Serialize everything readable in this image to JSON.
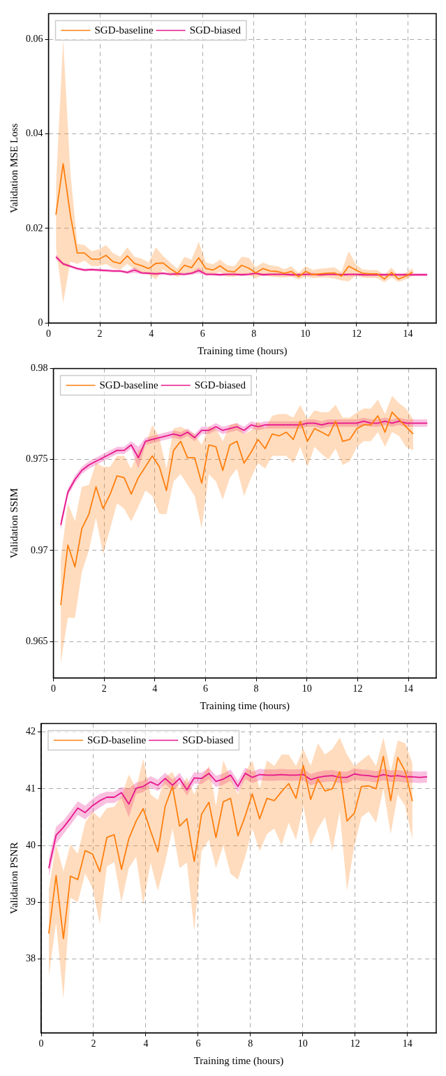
{
  "chart_data": [
    {
      "type": "line",
      "xlabel": "Training time (hours)",
      "ylabel": "Validation MSE Loss",
      "xlim": [
        0,
        15.1
      ],
      "xticks": [
        0,
        2,
        4,
        6,
        8,
        10,
        12,
        14
      ],
      "ylim": [
        0,
        0.0655
      ],
      "yticks": [
        0,
        0.02,
        0.04,
        0.06
      ],
      "grid": true,
      "legend": "top left",
      "series": [
        {
          "name": "SGD-baseline",
          "color": "#ff7f0e",
          "x": [
            0.29,
            0.57,
            0.85,
            1.12,
            1.4,
            1.68,
            1.96,
            2.24,
            2.51,
            2.79,
            3.07,
            3.35,
            3.63,
            3.9,
            4.18,
            4.46,
            4.74,
            5.02,
            5.29,
            5.57,
            5.85,
            6.13,
            6.41,
            6.68,
            6.96,
            7.24,
            7.52,
            7.8,
            8.07,
            8.35,
            8.63,
            8.91,
            9.19,
            9.46,
            9.74,
            10.02,
            10.3,
            10.58,
            10.85,
            11.13,
            11.41,
            11.69,
            11.97,
            12.24,
            12.52,
            12.8,
            13.08,
            13.36,
            13.63,
            13.91,
            14.19
          ],
          "values": [
            0.0229,
            0.0337,
            0.0229,
            0.0148,
            0.0148,
            0.0135,
            0.0135,
            0.0143,
            0.013,
            0.0126,
            0.0142,
            0.0126,
            0.0121,
            0.0115,
            0.0126,
            0.0127,
            0.0115,
            0.0105,
            0.0122,
            0.0117,
            0.0138,
            0.0115,
            0.0112,
            0.0121,
            0.011,
            0.0108,
            0.0122,
            0.0116,
            0.0106,
            0.0115,
            0.011,
            0.0109,
            0.0105,
            0.0109,
            0.0098,
            0.0109,
            0.0102,
            0.0104,
            0.0105,
            0.0106,
            0.0099,
            0.012,
            0.0112,
            0.0105,
            0.0104,
            0.0104,
            0.0093,
            0.0107,
            0.0093,
            0.0099,
            0.0108
          ],
          "lower": [
            0.016,
            0.0042,
            0.013,
            0.0125,
            0.0132,
            0.012,
            0.012,
            0.0125,
            0.0116,
            0.0113,
            0.0125,
            0.0113,
            0.0108,
            0.0103,
            0.0092,
            0.0113,
            0.0104,
            0.0097,
            0.0106,
            0.0103,
            0.011,
            0.0104,
            0.0102,
            0.0108,
            0.0098,
            0.0098,
            0.0104,
            0.0102,
            0.0094,
            0.0102,
            0.0098,
            0.0097,
            0.0096,
            0.0098,
            0.0092,
            0.0098,
            0.0095,
            0.0096,
            0.0096,
            0.0094,
            0.009,
            0.0088,
            0.01,
            0.0096,
            0.0095,
            0.0095,
            0.0086,
            0.0096,
            0.0087,
            0.0092,
            0.01
          ],
          "upper": [
            0.029,
            0.06,
            0.032,
            0.0168,
            0.0165,
            0.0152,
            0.0156,
            0.0165,
            0.0148,
            0.014,
            0.016,
            0.014,
            0.0136,
            0.0128,
            0.016,
            0.0142,
            0.0128,
            0.0115,
            0.014,
            0.0134,
            0.0172,
            0.0128,
            0.0124,
            0.0134,
            0.0122,
            0.012,
            0.014,
            0.0138,
            0.0118,
            0.0128,
            0.0122,
            0.012,
            0.0114,
            0.012,
            0.0106,
            0.012,
            0.0112,
            0.0115,
            0.0116,
            0.0118,
            0.0108,
            0.0152,
            0.0124,
            0.0113,
            0.0112,
            0.0112,
            0.0102,
            0.0117,
            0.01,
            0.0106,
            0.0116
          ]
        },
        {
          "name": "SGD-biased",
          "color": "#e7158c",
          "x": [
            0.29,
            0.57,
            0.85,
            1.12,
            1.4,
            1.68,
            1.96,
            2.24,
            2.51,
            2.79,
            3.07,
            3.35,
            3.63,
            3.9,
            4.18,
            4.46,
            4.74,
            5.02,
            5.29,
            5.57,
            5.85,
            6.13,
            6.41,
            6.68,
            6.96,
            7.24,
            7.52,
            7.8,
            8.07,
            8.35,
            8.63,
            8.91,
            9.19,
            9.46,
            9.74,
            10.02,
            10.3,
            10.58,
            10.85,
            11.13,
            11.41,
            11.69,
            11.97,
            12.24,
            12.52,
            12.8,
            13.08,
            13.36,
            13.63,
            13.91,
            14.19,
            14.47,
            14.75
          ],
          "values": [
            0.014,
            0.0125,
            0.012,
            0.0115,
            0.0112,
            0.0113,
            0.0112,
            0.0111,
            0.011,
            0.011,
            0.0107,
            0.0112,
            0.0106,
            0.0105,
            0.0104,
            0.0105,
            0.0103,
            0.0104,
            0.0103,
            0.0105,
            0.0111,
            0.0103,
            0.0103,
            0.0102,
            0.0103,
            0.0103,
            0.0102,
            0.0103,
            0.0105,
            0.0102,
            0.0103,
            0.0103,
            0.0103,
            0.0102,
            0.0102,
            0.0103,
            0.0103,
            0.0102,
            0.0103,
            0.0103,
            0.0102,
            0.0103,
            0.0103,
            0.0102,
            0.0102,
            0.0102,
            0.0102,
            0.0102,
            0.0102,
            0.0102,
            0.0102,
            0.0102,
            0.0102
          ],
          "lower": [
            0.0134,
            0.0122,
            0.0117,
            0.0112,
            0.0109,
            0.011,
            0.0109,
            0.0108,
            0.0107,
            0.0107,
            0.0104,
            0.0106,
            0.0103,
            0.0102,
            0.0101,
            0.0102,
            0.01,
            0.0101,
            0.01,
            0.0102,
            0.0105,
            0.01,
            0.01,
            0.0099,
            0.01,
            0.01,
            0.0099,
            0.01,
            0.0102,
            0.0099,
            0.01,
            0.01,
            0.01,
            0.0099,
            0.0099,
            0.01,
            0.01,
            0.0099,
            0.01,
            0.01,
            0.0099,
            0.0099,
            0.0099,
            0.0099,
            0.0099,
            0.0099,
            0.0099,
            0.0099,
            0.0099,
            0.0099,
            0.0099,
            0.0099,
            0.0099
          ],
          "upper": [
            0.0146,
            0.0128,
            0.0123,
            0.0118,
            0.0115,
            0.0116,
            0.0115,
            0.0114,
            0.0113,
            0.0113,
            0.011,
            0.0118,
            0.0109,
            0.0108,
            0.0107,
            0.0108,
            0.0106,
            0.0107,
            0.0106,
            0.0108,
            0.0117,
            0.0106,
            0.0106,
            0.0105,
            0.0106,
            0.0106,
            0.0105,
            0.0106,
            0.0108,
            0.0105,
            0.0106,
            0.0106,
            0.0106,
            0.0105,
            0.0105,
            0.0106,
            0.0106,
            0.0105,
            0.0106,
            0.0106,
            0.0105,
            0.0105,
            0.0105,
            0.0105,
            0.0105,
            0.0105,
            0.0105,
            0.0105,
            0.0105,
            0.0105,
            0.0105,
            0.0105,
            0.0105
          ]
        }
      ]
    },
    {
      "type": "line",
      "xlabel": "Training time (hours)",
      "ylabel": "Validation SSIM",
      "xlim": [
        0,
        15.1
      ],
      "xticks": [
        0,
        2,
        4,
        6,
        8,
        10,
        12,
        14
      ],
      "ylim": [
        0.963,
        0.98
      ],
      "yticks": [
        0.965,
        0.97,
        0.975,
        0.98
      ],
      "grid": true,
      "legend": "top left",
      "series": [
        {
          "name": "SGD-baseline",
          "color": "#ff7f0e",
          "x": [
            0.29,
            0.57,
            0.85,
            1.12,
            1.4,
            1.68,
            1.96,
            2.24,
            2.51,
            2.79,
            3.07,
            3.35,
            3.63,
            3.9,
            4.18,
            4.46,
            4.74,
            5.02,
            5.29,
            5.57,
            5.85,
            6.13,
            6.41,
            6.68,
            6.96,
            7.24,
            7.52,
            7.8,
            8.07,
            8.35,
            8.63,
            8.91,
            9.19,
            9.46,
            9.74,
            10.02,
            10.3,
            10.58,
            10.85,
            11.13,
            11.41,
            11.69,
            11.97,
            12.24,
            12.52,
            12.8,
            13.08,
            13.36,
            13.63,
            13.91,
            14.19
          ],
          "values": [
            0.967,
            0.9703,
            0.9691,
            0.9712,
            0.972,
            0.9735,
            0.9723,
            0.9731,
            0.9741,
            0.974,
            0.9731,
            0.974,
            0.9746,
            0.9752,
            0.9746,
            0.9733,
            0.9755,
            0.976,
            0.9751,
            0.9751,
            0.9737,
            0.9758,
            0.9757,
            0.9744,
            0.9758,
            0.976,
            0.9748,
            0.9754,
            0.9761,
            0.9756,
            0.9764,
            0.9763,
            0.9765,
            0.9761,
            0.9771,
            0.976,
            0.9767,
            0.9765,
            0.9763,
            0.9771,
            0.976,
            0.9761,
            0.9767,
            0.9769,
            0.9769,
            0.9774,
            0.9765,
            0.9776,
            0.9772,
            0.9768,
            0.9764
          ],
          "lower": [
            0.9638,
            0.9663,
            0.9663,
            0.9688,
            0.97,
            0.9718,
            0.9698,
            0.9712,
            0.9726,
            0.9723,
            0.9716,
            0.9724,
            0.9733,
            0.973,
            0.972,
            0.972,
            0.9738,
            0.9742,
            0.9736,
            0.973,
            0.9712,
            0.9742,
            0.9738,
            0.9728,
            0.974,
            0.9745,
            0.973,
            0.974,
            0.9748,
            0.9745,
            0.9752,
            0.9752,
            0.9752,
            0.9748,
            0.9757,
            0.9746,
            0.9757,
            0.9753,
            0.975,
            0.9756,
            0.9747,
            0.9749,
            0.9757,
            0.976,
            0.976,
            0.9765,
            0.9757,
            0.9765,
            0.9763,
            0.9757,
            0.9755
          ],
          "upper": [
            0.9695,
            0.9726,
            0.9716,
            0.9735,
            0.9736,
            0.9748,
            0.9746,
            0.9746,
            0.9752,
            0.9752,
            0.9745,
            0.9755,
            0.9758,
            0.9769,
            0.9762,
            0.9745,
            0.9767,
            0.9768,
            0.9766,
            0.9764,
            0.9758,
            0.9768,
            0.9767,
            0.976,
            0.9769,
            0.977,
            0.9764,
            0.9766,
            0.9771,
            0.9767,
            0.9774,
            0.9775,
            0.9775,
            0.9773,
            0.978,
            0.9772,
            0.9777,
            0.9776,
            0.9776,
            0.978,
            0.9773,
            0.9773,
            0.9776,
            0.9778,
            0.9778,
            0.9783,
            0.9775,
            0.9785,
            0.9781,
            0.9778,
            0.9772
          ]
        },
        {
          "name": "SGD-biased",
          "color": "#e7158c",
          "x": [
            0.29,
            0.57,
            0.85,
            1.12,
            1.4,
            1.68,
            1.96,
            2.24,
            2.51,
            2.79,
            3.07,
            3.35,
            3.63,
            3.9,
            4.18,
            4.46,
            4.74,
            5.02,
            5.29,
            5.57,
            5.85,
            6.13,
            6.41,
            6.68,
            6.96,
            7.24,
            7.52,
            7.8,
            8.07,
            8.35,
            8.63,
            8.91,
            9.19,
            9.46,
            9.74,
            10.02,
            10.3,
            10.58,
            10.85,
            11.13,
            11.41,
            11.69,
            11.97,
            12.24,
            12.52,
            12.8,
            13.08,
            13.36,
            13.63,
            13.91,
            14.19,
            14.47,
            14.75
          ],
          "values": [
            0.9714,
            0.9732,
            0.9739,
            0.9744,
            0.9747,
            0.9749,
            0.9751,
            0.9753,
            0.9755,
            0.9755,
            0.9758,
            0.9751,
            0.976,
            0.9761,
            0.9762,
            0.9763,
            0.9764,
            0.9763,
            0.9765,
            0.9762,
            0.9766,
            0.9766,
            0.9768,
            0.9766,
            0.9767,
            0.9768,
            0.9766,
            0.9769,
            0.9768,
            0.9769,
            0.9769,
            0.9769,
            0.9769,
            0.9769,
            0.9769,
            0.977,
            0.977,
            0.9769,
            0.977,
            0.977,
            0.977,
            0.977,
            0.977,
            0.9771,
            0.977,
            0.977,
            0.9771,
            0.977,
            0.9771,
            0.977,
            0.977,
            0.977,
            0.977
          ],
          "lower": [
            0.9711,
            0.973,
            0.9737,
            0.9742,
            0.9745,
            0.9747,
            0.9749,
            0.9751,
            0.9753,
            0.9753,
            0.9756,
            0.9745,
            0.9758,
            0.9759,
            0.976,
            0.9761,
            0.9762,
            0.9761,
            0.9763,
            0.976,
            0.9764,
            0.9764,
            0.9766,
            0.9764,
            0.9765,
            0.9766,
            0.9764,
            0.9767,
            0.9766,
            0.9767,
            0.9767,
            0.9767,
            0.9767,
            0.9767,
            0.9767,
            0.9768,
            0.9768,
            0.9767,
            0.9768,
            0.9768,
            0.9768,
            0.9768,
            0.9768,
            0.9769,
            0.9768,
            0.9768,
            0.9769,
            0.9768,
            0.9769,
            0.9768,
            0.9768,
            0.9768,
            0.9768
          ],
          "upper": [
            0.9717,
            0.9734,
            0.9741,
            0.9746,
            0.9749,
            0.9751,
            0.9753,
            0.9755,
            0.9757,
            0.9757,
            0.976,
            0.9757,
            0.9762,
            0.9763,
            0.9764,
            0.9765,
            0.9766,
            0.9765,
            0.9767,
            0.9764,
            0.9768,
            0.9768,
            0.977,
            0.9768,
            0.9769,
            0.977,
            0.9768,
            0.9771,
            0.977,
            0.9771,
            0.9771,
            0.9771,
            0.9771,
            0.9771,
            0.9771,
            0.9772,
            0.9772,
            0.9771,
            0.9772,
            0.9772,
            0.9772,
            0.9772,
            0.9772,
            0.9773,
            0.9772,
            0.9772,
            0.9773,
            0.9772,
            0.9773,
            0.9772,
            0.9772,
            0.9772,
            0.9772
          ]
        }
      ]
    },
    {
      "type": "line",
      "xlabel": "Training time (hours)",
      "ylabel": "Validation PSNR",
      "xlim": [
        0,
        15.1
      ],
      "xticks": [
        0,
        2,
        4,
        6,
        8,
        10,
        12,
        14
      ],
      "ylim": [
        36.7,
        42.15
      ],
      "yticks": [
        38,
        39,
        40,
        41,
        42
      ],
      "grid": true,
      "legend": "top left",
      "series": [
        {
          "name": "SGD-baseline",
          "color": "#ff7f0e",
          "x": [
            0.29,
            0.57,
            0.85,
            1.12,
            1.4,
            1.68,
            1.96,
            2.24,
            2.51,
            2.79,
            3.07,
            3.35,
            3.63,
            3.9,
            4.18,
            4.46,
            4.74,
            5.02,
            5.29,
            5.57,
            5.85,
            6.13,
            6.41,
            6.68,
            6.96,
            7.24,
            7.52,
            7.8,
            8.07,
            8.35,
            8.63,
            8.91,
            9.19,
            9.46,
            9.74,
            10.02,
            10.3,
            10.58,
            10.85,
            11.13,
            11.41,
            11.69,
            11.97,
            12.24,
            12.52,
            12.8,
            13.08,
            13.36,
            13.63,
            13.91,
            14.19
          ],
          "values": [
            38.45,
            39.47,
            38.36,
            39.46,
            39.4,
            39.91,
            39.85,
            39.54,
            40.14,
            40.19,
            39.58,
            40.12,
            40.43,
            40.65,
            40.26,
            39.89,
            40.69,
            41.04,
            40.34,
            40.47,
            39.72,
            40.55,
            40.76,
            40.14,
            40.77,
            40.83,
            40.17,
            40.52,
            40.91,
            40.47,
            40.83,
            40.79,
            40.95,
            41.09,
            40.83,
            41.41,
            40.81,
            41.17,
            40.96,
            41.0,
            41.3,
            40.43,
            40.57,
            41.04,
            41.05,
            41.0,
            41.57,
            40.79,
            41.55,
            41.31,
            40.78
          ],
          "lower": [
            37.69,
            38.64,
            37.3,
            39.08,
            39.0,
            39.51,
            39.25,
            38.62,
            39.63,
            39.71,
            39.0,
            39.6,
            39.8,
            38.95,
            39.7,
            39.2,
            39.7,
            40.3,
            39.6,
            39.7,
            38.5,
            39.9,
            40.1,
            39.6,
            40.0,
            39.5,
            39.4,
            39.8,
            40.3,
            39.9,
            40.2,
            40.3,
            40.0,
            40.4,
            40.1,
            40.7,
            40.0,
            40.3,
            40.5,
            39.9,
            40.6,
            39.2,
            40.0,
            40.5,
            40.6,
            40.4,
            41.0,
            40.2,
            40.9,
            40.7,
            40.1
          ],
          "upper": [
            39.23,
            40.02,
            39.55,
            40.02,
            39.85,
            40.4,
            40.6,
            40.48,
            40.66,
            40.68,
            40.87,
            41.25,
            41.0,
            41.53,
            40.9,
            40.8,
            41.2,
            41.3,
            41.0,
            41.2,
            40.9,
            41.2,
            41.4,
            40.7,
            41.5,
            41.2,
            40.9,
            41.3,
            41.5,
            41.0,
            41.5,
            41.4,
            41.6,
            41.6,
            41.4,
            41.7,
            41.4,
            41.8,
            41.6,
            41.7,
            41.9,
            41.6,
            41.4,
            41.5,
            41.6,
            41.4,
            41.9,
            41.3,
            41.85,
            41.8,
            41.45
          ]
        },
        {
          "name": "SGD-biased",
          "color": "#e7158c",
          "x": [
            0.29,
            0.57,
            0.85,
            1.12,
            1.4,
            1.68,
            1.96,
            2.24,
            2.51,
            2.79,
            3.07,
            3.35,
            3.63,
            3.9,
            4.18,
            4.46,
            4.74,
            5.02,
            5.29,
            5.57,
            5.85,
            6.13,
            6.41,
            6.68,
            6.96,
            7.24,
            7.52,
            7.8,
            8.07,
            8.35,
            8.63,
            8.91,
            9.19,
            9.46,
            9.74,
            10.02,
            10.3,
            10.58,
            10.85,
            11.13,
            11.41,
            11.69,
            11.97,
            12.24,
            12.52,
            12.8,
            13.08,
            13.36,
            13.63,
            13.91,
            14.19,
            14.47,
            14.75
          ],
          "values": [
            39.6,
            40.18,
            40.32,
            40.48,
            40.66,
            40.58,
            40.7,
            40.79,
            40.85,
            40.85,
            40.93,
            40.73,
            41.01,
            41.04,
            41.12,
            41.06,
            41.18,
            41.06,
            41.18,
            40.98,
            41.19,
            41.18,
            41.27,
            41.13,
            41.17,
            41.24,
            41.04,
            41.27,
            41.2,
            41.25,
            41.24,
            41.24,
            41.25,
            41.24,
            41.24,
            41.25,
            41.16,
            41.2,
            41.22,
            41.23,
            41.2,
            41.2,
            41.26,
            41.24,
            41.23,
            41.21,
            41.25,
            41.22,
            41.23,
            41.21,
            41.21,
            41.2,
            41.21
          ],
          "lower": [
            39.45,
            40.03,
            40.2,
            40.36,
            40.54,
            40.46,
            40.58,
            40.67,
            40.75,
            40.75,
            40.83,
            40.5,
            40.91,
            40.94,
            41.02,
            40.96,
            41.08,
            40.96,
            41.08,
            40.88,
            41.09,
            41.08,
            41.17,
            41.03,
            41.07,
            41.14,
            40.94,
            41.17,
            41.1,
            41.15,
            41.14,
            41.14,
            41.15,
            41.14,
            41.14,
            41.15,
            41.06,
            41.1,
            41.12,
            41.13,
            41.1,
            41.1,
            41.16,
            41.14,
            41.13,
            41.11,
            41.15,
            41.12,
            41.13,
            41.11,
            41.11,
            41.1,
            41.11
          ],
          "upper": [
            39.75,
            40.33,
            40.44,
            40.6,
            40.78,
            40.7,
            40.82,
            40.91,
            40.95,
            40.95,
            41.03,
            41.0,
            41.11,
            41.14,
            41.22,
            41.16,
            41.28,
            41.16,
            41.28,
            41.08,
            41.29,
            41.28,
            41.37,
            41.23,
            41.27,
            41.34,
            41.14,
            41.37,
            41.3,
            41.35,
            41.34,
            41.34,
            41.35,
            41.34,
            41.34,
            41.35,
            41.26,
            41.3,
            41.32,
            41.33,
            41.3,
            41.3,
            41.36,
            41.34,
            41.33,
            41.31,
            41.35,
            41.32,
            41.33,
            41.31,
            41.31,
            41.3,
            41.31
          ]
        }
      ]
    }
  ]
}
